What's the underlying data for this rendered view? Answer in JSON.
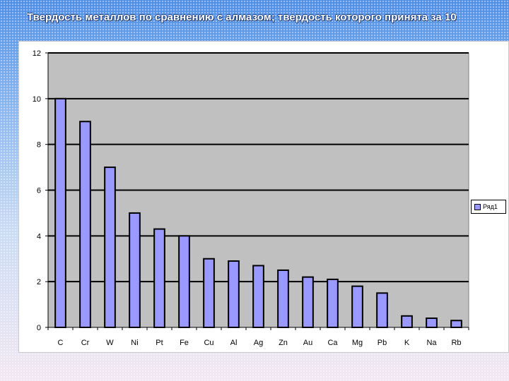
{
  "slide": {
    "title": "Твердость металлов по сравнению с алмазом; твердость которого принята за 10"
  },
  "chart_data": {
    "type": "bar",
    "categories": [
      "C",
      "Cr",
      "W",
      "Ni",
      "Pt",
      "Fe",
      "Cu",
      "Al",
      "Ag",
      "Zn",
      "Au",
      "Ca",
      "Mg",
      "Pb",
      "K",
      "Na",
      "Rb"
    ],
    "series": [
      {
        "name": "Ряд1",
        "values": [
          10,
          9,
          7,
          5,
          4.3,
          4,
          3,
          2.9,
          2.7,
          2.5,
          2.2,
          2.1,
          1.8,
          1.5,
          0.5,
          0.4,
          0.3
        ]
      }
    ],
    "ylim": [
      0,
      12
    ],
    "yticks": [
      0,
      2,
      4,
      6,
      8,
      10,
      12
    ],
    "grid": true,
    "legend": "right",
    "colors": {
      "bar": "#9999ff",
      "plot_bg": "#c0c0c0",
      "bar_edge": "#000000"
    }
  }
}
